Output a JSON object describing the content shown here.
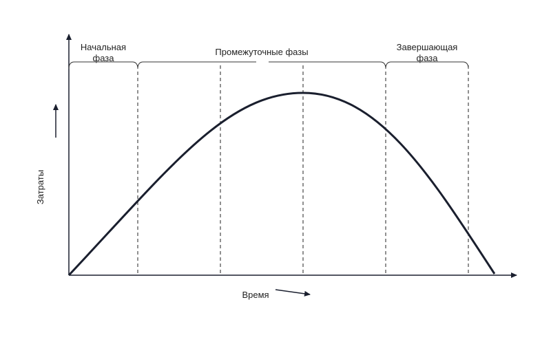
{
  "diagram": {
    "y_axis_label": "Затраты",
    "x_axis_label": "Время",
    "phases": [
      {
        "lines": [
          "Начальная",
          "фаза"
        ]
      },
      {
        "lines": [
          "Промежуточные фазы"
        ]
      },
      {
        "lines": [
          "Завершающая",
          "фаза"
        ]
      }
    ]
  }
}
